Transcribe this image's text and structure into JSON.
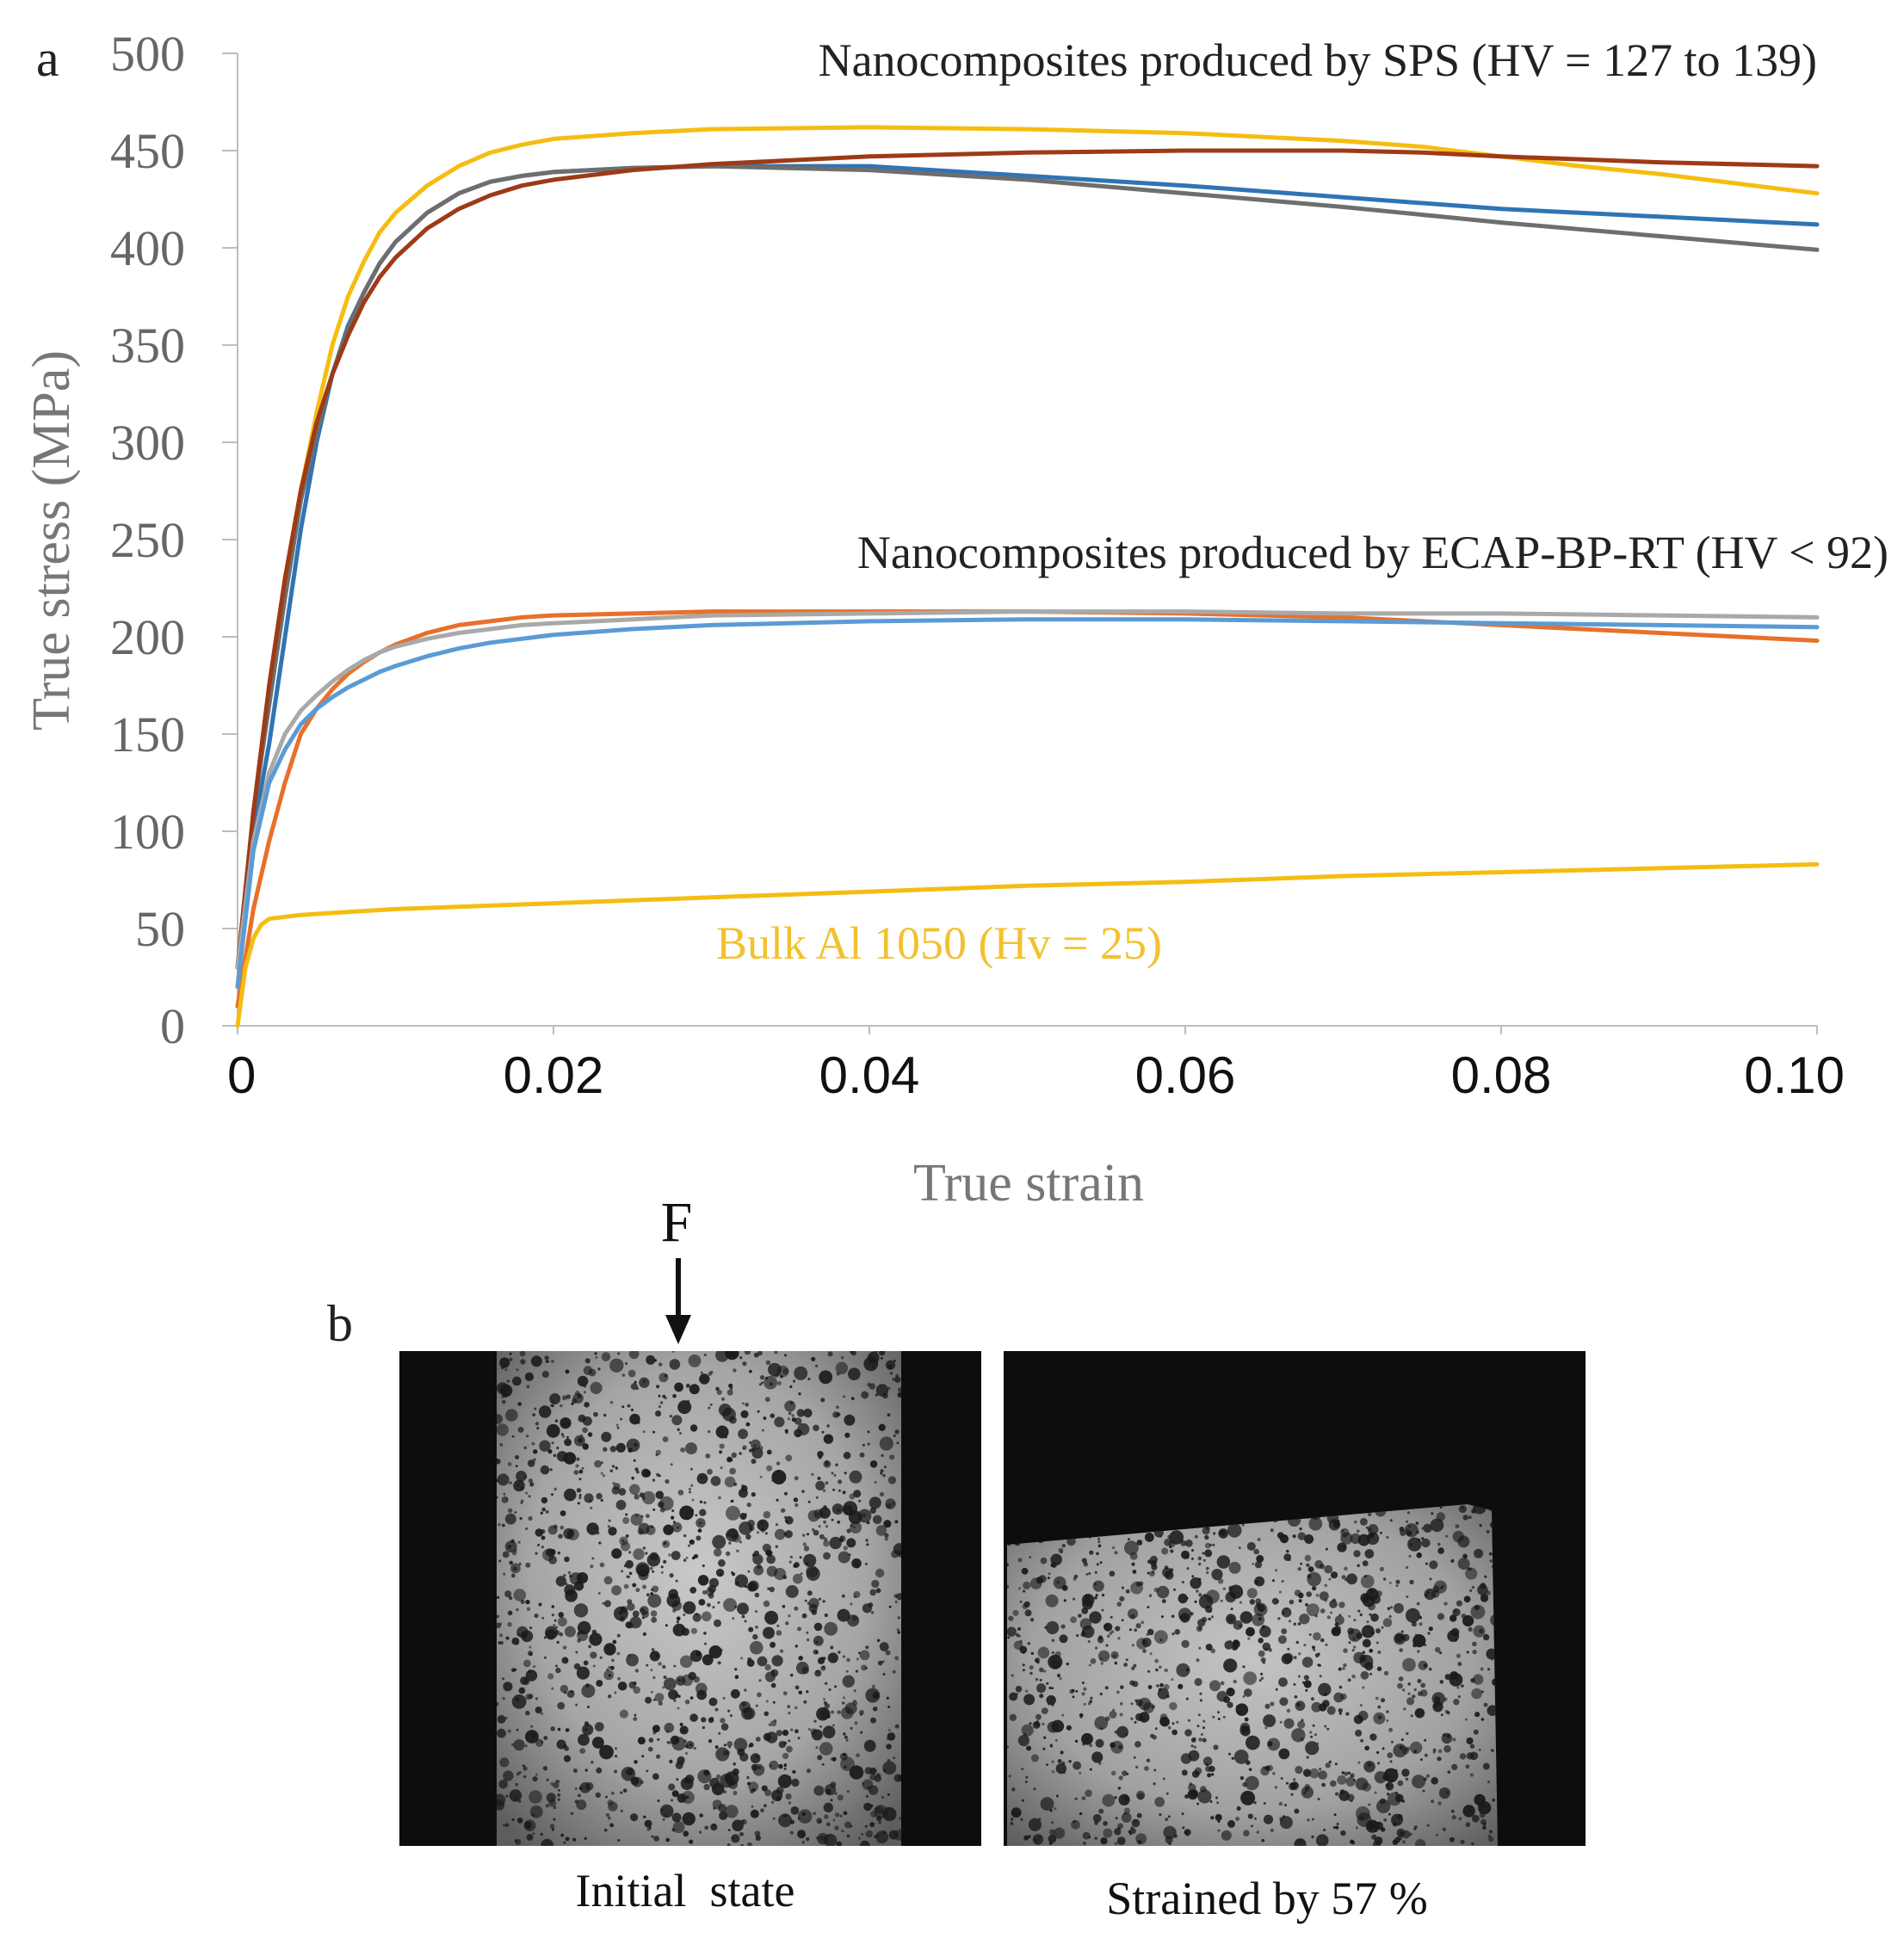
{
  "panel_labels": {
    "a": "a",
    "b": "b"
  },
  "chart_data": {
    "type": "line",
    "x_axis": {
      "label": "True strain",
      "range": [
        0,
        0.1
      ],
      "ticks": [
        0,
        0.02,
        0.04,
        0.06,
        0.08,
        0.1
      ],
      "tick_labels": [
        "0",
        "0.02",
        "0.04",
        "0.06",
        "0.08",
        "0.10"
      ]
    },
    "y_axis": {
      "label": "True stress (MPa)",
      "range": [
        0,
        500
      ],
      "ticks": [
        0,
        50,
        100,
        150,
        200,
        250,
        300,
        350,
        400,
        450,
        500
      ],
      "tick_labels": [
        "0",
        "50",
        "100",
        "150",
        "200",
        "250",
        "300",
        "350",
        "400",
        "450",
        "500"
      ]
    },
    "grid": false,
    "annotations": [
      {
        "id": "sps",
        "text": "Nanocomposites produced by SPS (HV = 127 to 139)",
        "color": "#222222"
      },
      {
        "id": "ecap",
        "text": "Nanocomposites produced by ECAP-BP-RT (HV < 92)",
        "color": "#222222"
      },
      {
        "id": "bulk",
        "text": "Bulk Al 1050 (Hv = 25)",
        "color": "#F2C12E"
      }
    ],
    "series": [
      {
        "name": "SPS yellow",
        "group": "SPS",
        "color": "#F5BD12",
        "x": [
          0,
          0.001,
          0.002,
          0.003,
          0.004,
          0.005,
          0.006,
          0.007,
          0.008,
          0.009,
          0.01,
          0.012,
          0.014,
          0.016,
          0.018,
          0.02,
          0.025,
          0.03,
          0.04,
          0.05,
          0.06,
          0.065,
          0.07,
          0.075,
          0.08,
          0.085,
          0.09,
          0.095,
          0.1
        ],
        "y": [
          20,
          105,
          175,
          230,
          275,
          315,
          350,
          375,
          393,
          408,
          418,
          432,
          442,
          449,
          453,
          456,
          459,
          461,
          462,
          461,
          459,
          457,
          455,
          452,
          447,
          442,
          438,
          433,
          428
        ]
      },
      {
        "name": "SPS blue",
        "group": "SPS",
        "color": "#2F74B5",
        "x": [
          0,
          0.001,
          0.002,
          0.003,
          0.004,
          0.005,
          0.006,
          0.007,
          0.008,
          0.009,
          0.01,
          0.012,
          0.014,
          0.016,
          0.018,
          0.02,
          0.025,
          0.03,
          0.04,
          0.05,
          0.06,
          0.07,
          0.08,
          0.09,
          0.1
        ],
        "y": [
          30,
          100,
          145,
          200,
          255,
          300,
          335,
          360,
          377,
          392,
          403,
          418,
          428,
          434,
          437,
          439,
          441,
          442,
          442,
          437,
          432,
          426,
          420,
          416,
          412
        ]
      },
      {
        "name": "SPS gray",
        "group": "SPS",
        "color": "#6E6E6E",
        "x": [
          0,
          0.001,
          0.002,
          0.003,
          0.004,
          0.005,
          0.006,
          0.007,
          0.008,
          0.009,
          0.01,
          0.012,
          0.014,
          0.016,
          0.018,
          0.02,
          0.025,
          0.03,
          0.04,
          0.05,
          0.06,
          0.07,
          0.08,
          0.09,
          0.1
        ],
        "y": [
          30,
          110,
          165,
          220,
          270,
          305,
          335,
          358,
          377,
          392,
          403,
          418,
          428,
          434,
          437,
          439,
          441,
          442,
          440,
          435,
          428,
          421,
          413,
          406,
          399
        ]
      },
      {
        "name": "SPS dark orange",
        "group": "SPS",
        "color": "#9E3A16",
        "x": [
          0,
          0.001,
          0.002,
          0.003,
          0.004,
          0.005,
          0.006,
          0.007,
          0.008,
          0.009,
          0.01,
          0.012,
          0.014,
          0.016,
          0.018,
          0.02,
          0.025,
          0.03,
          0.04,
          0.05,
          0.06,
          0.07,
          0.075,
          0.08,
          0.09,
          0.1
        ],
        "y": [
          30,
          110,
          175,
          230,
          275,
          310,
          335,
          355,
          372,
          385,
          395,
          410,
          420,
          427,
          432,
          435,
          440,
          443,
          447,
          449,
          450,
          450,
          449,
          447,
          444,
          442
        ]
      },
      {
        "name": "ECAP orange",
        "group": "ECAP",
        "color": "#E8702A",
        "x": [
          0,
          0.001,
          0.002,
          0.003,
          0.004,
          0.005,
          0.006,
          0.007,
          0.008,
          0.009,
          0.01,
          0.012,
          0.014,
          0.016,
          0.018,
          0.02,
          0.025,
          0.03,
          0.04,
          0.05,
          0.06,
          0.07,
          0.08,
          0.09,
          0.1
        ],
        "y": [
          10,
          60,
          95,
          125,
          150,
          163,
          173,
          181,
          187,
          192,
          196,
          202,
          206,
          208,
          210,
          211,
          212,
          213,
          213,
          213,
          212,
          210,
          206,
          202,
          198
        ]
      },
      {
        "name": "ECAP light gray",
        "group": "ECAP",
        "color": "#A9A9A9",
        "x": [
          0,
          0.001,
          0.002,
          0.003,
          0.004,
          0.005,
          0.006,
          0.007,
          0.008,
          0.009,
          0.01,
          0.012,
          0.014,
          0.016,
          0.018,
          0.02,
          0.025,
          0.03,
          0.04,
          0.05,
          0.06,
          0.07,
          0.08,
          0.09,
          0.1
        ],
        "y": [
          30,
          95,
          130,
          150,
          162,
          170,
          177,
          183,
          188,
          192,
          195,
          199,
          202,
          204,
          206,
          207,
          209,
          211,
          212,
          213,
          213,
          212,
          212,
          211,
          210
        ]
      },
      {
        "name": "ECAP light blue",
        "group": "ECAP",
        "color": "#5B9BD5",
        "x": [
          0,
          0.001,
          0.002,
          0.003,
          0.004,
          0.005,
          0.006,
          0.007,
          0.008,
          0.009,
          0.01,
          0.012,
          0.014,
          0.016,
          0.018,
          0.02,
          0.025,
          0.03,
          0.04,
          0.05,
          0.06,
          0.07,
          0.08,
          0.09,
          0.1
        ],
        "y": [
          20,
          90,
          125,
          142,
          155,
          163,
          169,
          174,
          178,
          182,
          185,
          190,
          194,
          197,
          199,
          201,
          204,
          206,
          208,
          209,
          209,
          208,
          207,
          206,
          205
        ]
      },
      {
        "name": "Bulk Al 1050",
        "group": "Bulk",
        "color": "#F5BD12",
        "x": [
          0,
          0.0005,
          0.001,
          0.0015,
          0.002,
          0.004,
          0.006,
          0.01,
          0.02,
          0.03,
          0.04,
          0.05,
          0.06,
          0.07,
          0.08,
          0.09,
          0.1
        ],
        "y": [
          0,
          30,
          45,
          52,
          55,
          57,
          58,
          60,
          63,
          66,
          69,
          72,
          74,
          77,
          79,
          81,
          83
        ]
      }
    ]
  },
  "images": {
    "force_label": "F",
    "left_caption": "Initial  state",
    "right_caption": "Strained by 57 %"
  }
}
